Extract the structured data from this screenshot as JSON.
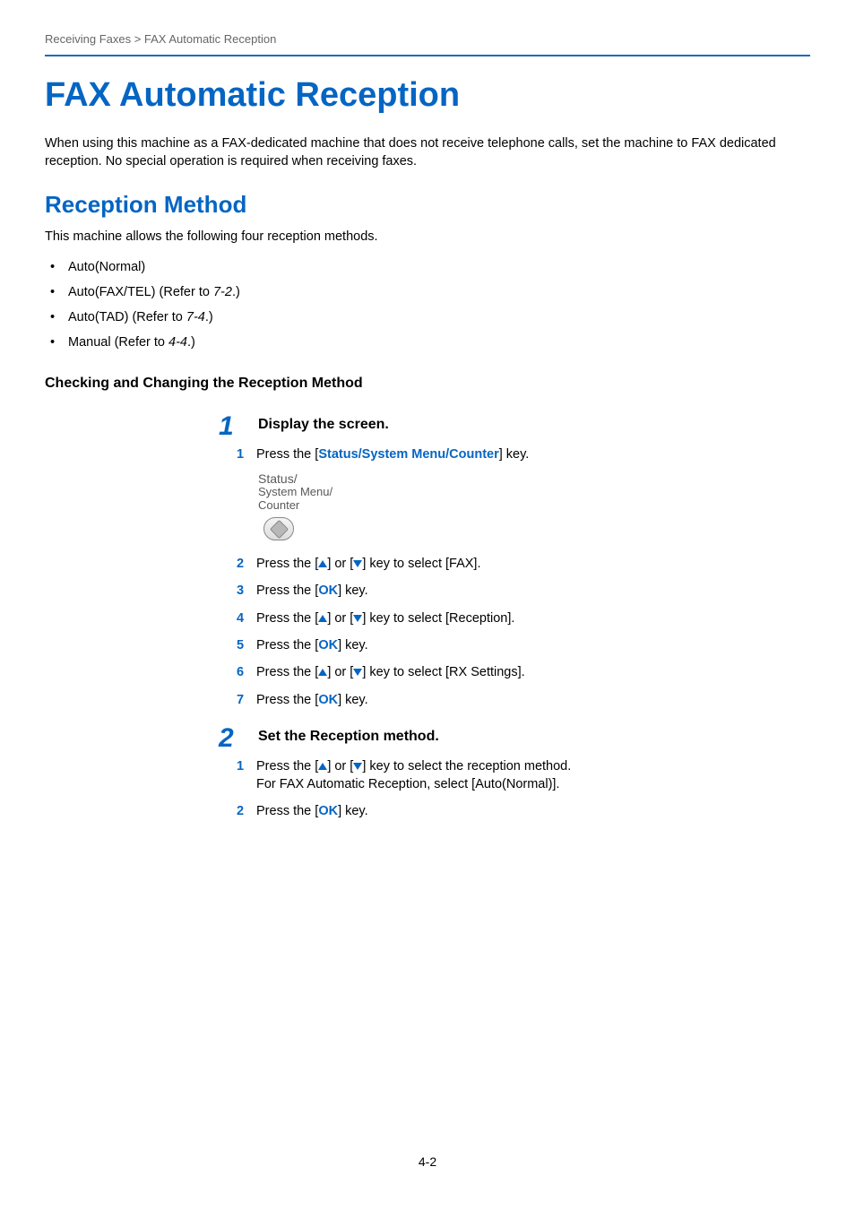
{
  "breadcrumb": "Receiving Faxes > FAX Automatic Reception",
  "title": "FAX Automatic Reception",
  "intro": "When using this machine as a FAX-dedicated machine that does not receive telephone calls, set the machine to FAX dedicated reception. No special operation is required when receiving faxes.",
  "section2": "Reception Method",
  "section2_intro": "This machine allows the following four reception methods.",
  "methods": [
    {
      "text": "Auto(Normal)",
      "ref": ""
    },
    {
      "text": "Auto(FAX/TEL) (Refer to ",
      "ref": "7-2",
      "suffix": ".)"
    },
    {
      "text": "Auto(TAD) (Refer to ",
      "ref": "7-4",
      "suffix": ".)"
    },
    {
      "text": "Manual (Refer to ",
      "ref": "4-4",
      "suffix": ".)"
    }
  ],
  "section3": "Checking and Changing the Reception Method",
  "step1": {
    "num": "1",
    "title": "Display the screen.",
    "substeps": {
      "s1": {
        "n": "1",
        "pre": "Press the [",
        "key": "Status/System Menu/Counter",
        "post": "] key."
      },
      "s2": {
        "n": "2",
        "pre": "Press the [",
        "post": "] or [",
        "post2": "] key to select [FAX]."
      },
      "s3": {
        "n": "3",
        "pre": "Press the [",
        "key": "OK",
        "post": "] key."
      },
      "s4": {
        "n": "4",
        "pre": "Press the [",
        "post": "] or [",
        "post2": "] key to select [Reception]."
      },
      "s5": {
        "n": "5",
        "pre": "Press the [",
        "key": "OK",
        "post": "] key."
      },
      "s6": {
        "n": "6",
        "pre": "Press the [",
        "post": "] or [",
        "post2": "] key to select [RX Settings]."
      },
      "s7": {
        "n": "7",
        "pre": "Press the [",
        "key": "OK",
        "post": "] key."
      }
    },
    "key_image": {
      "l1": "Status/",
      "l2": "System Menu/",
      "l3": "Counter"
    }
  },
  "step2": {
    "num": "2",
    "title": "Set the Reception method.",
    "substeps": {
      "s1": {
        "n": "1",
        "pre": "Press the [",
        "post": "] or [",
        "post2": "] key to select the reception method.",
        "line2": "For FAX Automatic Reception, select [Auto(Normal)]."
      },
      "s2": {
        "n": "2",
        "pre": "Press the [",
        "key": "OK",
        "post": "] key."
      }
    }
  },
  "page_num": "4-2"
}
